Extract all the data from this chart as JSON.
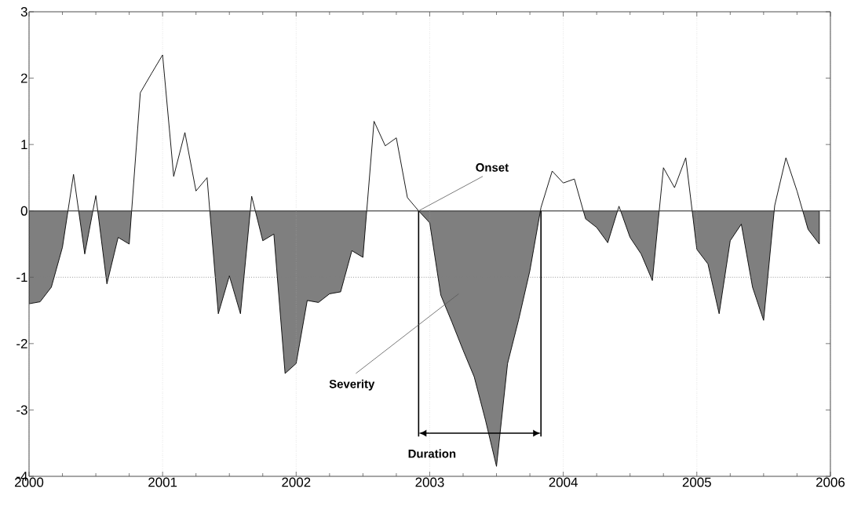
{
  "chart_data": {
    "type": "area",
    "x": [
      2000,
      2000.083,
      2000.167,
      2000.25,
      2000.333,
      2000.417,
      2000.5,
      2000.583,
      2000.667,
      2000.75,
      2000.833,
      2000.917,
      2001,
      2001.083,
      2001.167,
      2001.25,
      2001.333,
      2001.417,
      2001.5,
      2001.583,
      2001.667,
      2001.75,
      2001.833,
      2001.917,
      2002,
      2002.083,
      2002.167,
      2002.25,
      2002.333,
      2002.417,
      2002.5,
      2002.583,
      2002.667,
      2002.75,
      2002.833,
      2002.917,
      2003,
      2003.083,
      2003.167,
      2003.25,
      2003.333,
      2003.417,
      2003.5,
      2003.583,
      2003.667,
      2003.75,
      2003.833,
      2003.917,
      2004,
      2004.083,
      2004.167,
      2004.25,
      2004.333,
      2004.417,
      2004.5,
      2004.583,
      2004.667,
      2004.75,
      2004.833,
      2004.917,
      2005,
      2005.083,
      2005.167,
      2005.25,
      2005.333,
      2005.417,
      2005.5,
      2005.583,
      2005.667,
      2005.75,
      2005.833,
      2005.917
    ],
    "series": [
      {
        "color": "#7f7f7f",
        "values": [
          -1.4,
          -1.37,
          -1.15,
          -0.55,
          0.55,
          -0.65,
          0.23,
          -1.1,
          -0.4,
          -0.5,
          1.78,
          2.07,
          2.35,
          0.52,
          1.18,
          0.3,
          0.5,
          -1.55,
          -0.98,
          -1.55,
          0.22,
          -0.45,
          -0.35,
          -2.45,
          -2.3,
          -1.35,
          -1.38,
          -1.25,
          -1.22,
          -0.6,
          -0.7,
          1.35,
          0.98,
          1.1,
          0.2,
          0.0,
          -0.18,
          -1.27,
          -1.68,
          -2.1,
          -2.5,
          -3.15,
          -3.85,
          -2.3,
          -1.63,
          -0.9,
          0.05,
          0.6,
          0.42,
          0.48,
          -0.12,
          -0.25,
          -0.48,
          0.07,
          -0.4,
          -0.65,
          -1.05,
          0.65,
          0.35,
          0.8,
          -0.58,
          -0.8,
          -1.55,
          -0.45,
          -0.2,
          -1.15,
          -1.65,
          0.08,
          0.8,
          0.3,
          -0.28,
          -0.5
        ]
      }
    ],
    "xlim": [
      2000,
      2006
    ],
    "xticks": [
      2000,
      2001,
      2002,
      2003,
      2004,
      2005,
      2006
    ],
    "ylim": [
      -4,
      3
    ],
    "yticks": [
      -4,
      -3,
      -2,
      -1,
      0,
      1,
      2,
      3
    ],
    "grid": "x",
    "ref_lines": [
      {
        "axis": "y",
        "value": 0,
        "color": "#404040",
        "line_style": "solid"
      },
      {
        "axis": "y",
        "value": -1,
        "color": "#808080",
        "line_style": "dotted"
      },
      {
        "axis": "x",
        "value": 2002.917,
        "color": "#000000",
        "line_style": "solid"
      },
      {
        "axis": "x",
        "value": 2003.833,
        "color": "#000000",
        "line_style": "solid"
      }
    ],
    "annotations": [
      {
        "text": "Onset",
        "x": 2002.917,
        "y": 0
      },
      "Severity",
      "Duration"
    ]
  }
}
